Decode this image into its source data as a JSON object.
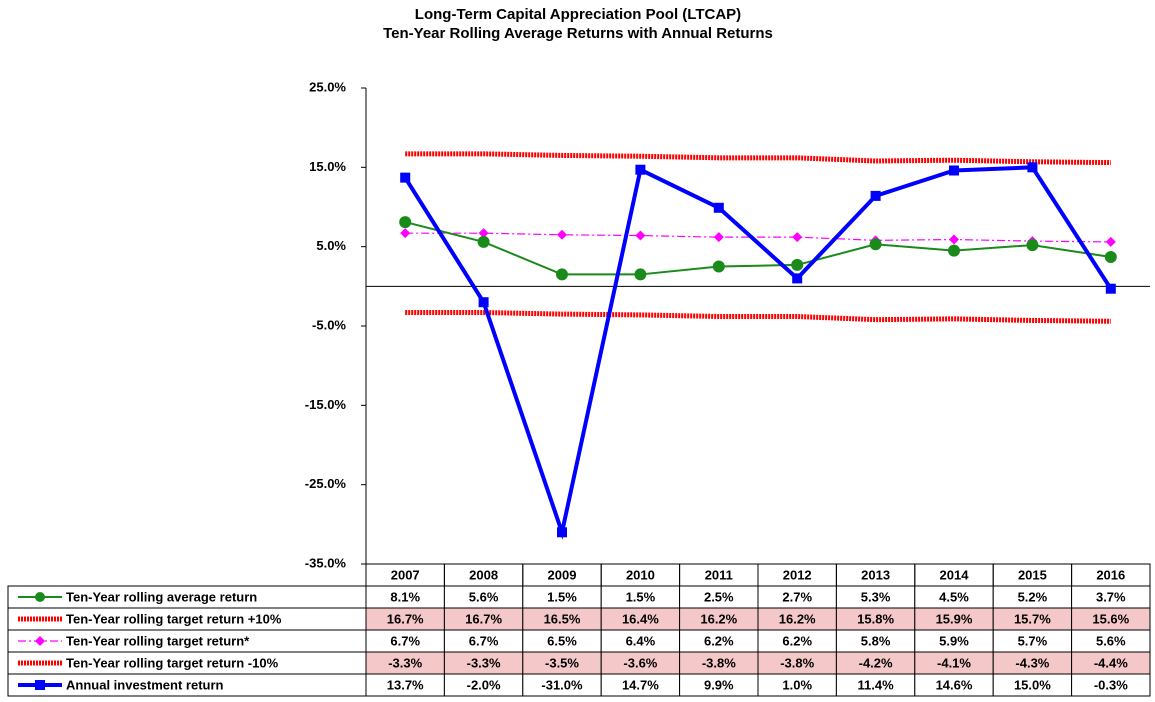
{
  "chart_data": {
    "type": "line",
    "title": "Long-Term Capital Appreciation Pool (LTCAP)",
    "subtitle": "Ten-Year Rolling Average Returns with Annual Returns",
    "categories": [
      "2007",
      "2008",
      "2009",
      "2010",
      "2011",
      "2012",
      "2013",
      "2014",
      "2015",
      "2016"
    ],
    "ylim": [
      -35,
      25
    ],
    "yticks": [
      {
        "value": 25,
        "label": "25.0%"
      },
      {
        "value": 15,
        "label": "15.0%"
      },
      {
        "value": 5,
        "label": "5.0%"
      },
      {
        "value": -5,
        "label": "-5.0%"
      },
      {
        "value": -15,
        "label": "-15.0%"
      },
      {
        "value": -25,
        "label": "-25.0%"
      },
      {
        "value": -35,
        "label": "-35.0%"
      }
    ],
    "series": [
      {
        "name": "Ten-Year rolling average return",
        "color": "#1a8a1a",
        "line_style": "solid",
        "marker": "circle",
        "values": [
          8.1,
          5.6,
          1.5,
          1.5,
          2.5,
          2.7,
          5.3,
          4.5,
          5.2,
          3.7
        ],
        "value_labels": [
          "8.1%",
          "5.6%",
          "1.5%",
          "1.5%",
          "2.5%",
          "2.7%",
          "5.3%",
          "4.5%",
          "5.2%",
          "3.7%"
        ]
      },
      {
        "name": "Ten-Year rolling target return +10%",
        "color": "#ff0000",
        "line_style": "dotted",
        "marker": "none",
        "values": [
          16.7,
          16.7,
          16.5,
          16.4,
          16.2,
          16.2,
          15.8,
          15.9,
          15.7,
          15.6
        ],
        "value_labels": [
          "16.7%",
          "16.7%",
          "16.5%",
          "16.4%",
          "16.2%",
          "16.2%",
          "15.8%",
          "15.9%",
          "15.7%",
          "15.6%"
        ]
      },
      {
        "name": "Ten-Year rolling target return*",
        "color": "#ff00ff",
        "line_style": "dashdot",
        "marker": "diamond",
        "values": [
          6.7,
          6.7,
          6.5,
          6.4,
          6.2,
          6.2,
          5.8,
          5.9,
          5.7,
          5.6
        ],
        "value_labels": [
          "6.7%",
          "6.7%",
          "6.5%",
          "6.4%",
          "6.2%",
          "6.2%",
          "5.8%",
          "5.9%",
          "5.7%",
          "5.6%"
        ]
      },
      {
        "name": "Ten-Year rolling target return -10%",
        "color": "#ff0000",
        "line_style": "dotted",
        "marker": "none",
        "values": [
          -3.3,
          -3.3,
          -3.5,
          -3.6,
          -3.8,
          -3.8,
          -4.2,
          -4.1,
          -4.3,
          -4.4
        ],
        "value_labels": [
          "-3.3%",
          "-3.3%",
          "-3.5%",
          "-3.6%",
          "-3.8%",
          "-3.8%",
          "-4.2%",
          "-4.1%",
          "-4.3%",
          "-4.4%"
        ]
      },
      {
        "name": "Annual investment return",
        "color": "#0000ff",
        "line_style": "solid",
        "marker": "square",
        "values": [
          13.7,
          -2.0,
          -31.0,
          14.7,
          9.9,
          1.0,
          11.4,
          14.6,
          15.0,
          -0.3
        ],
        "value_labels": [
          "13.7%",
          "-2.0%",
          "-31.0%",
          "14.7%",
          "9.9%",
          "1.0%",
          "11.4%",
          "14.6%",
          "15.0%",
          "-0.3%"
        ]
      }
    ]
  }
}
